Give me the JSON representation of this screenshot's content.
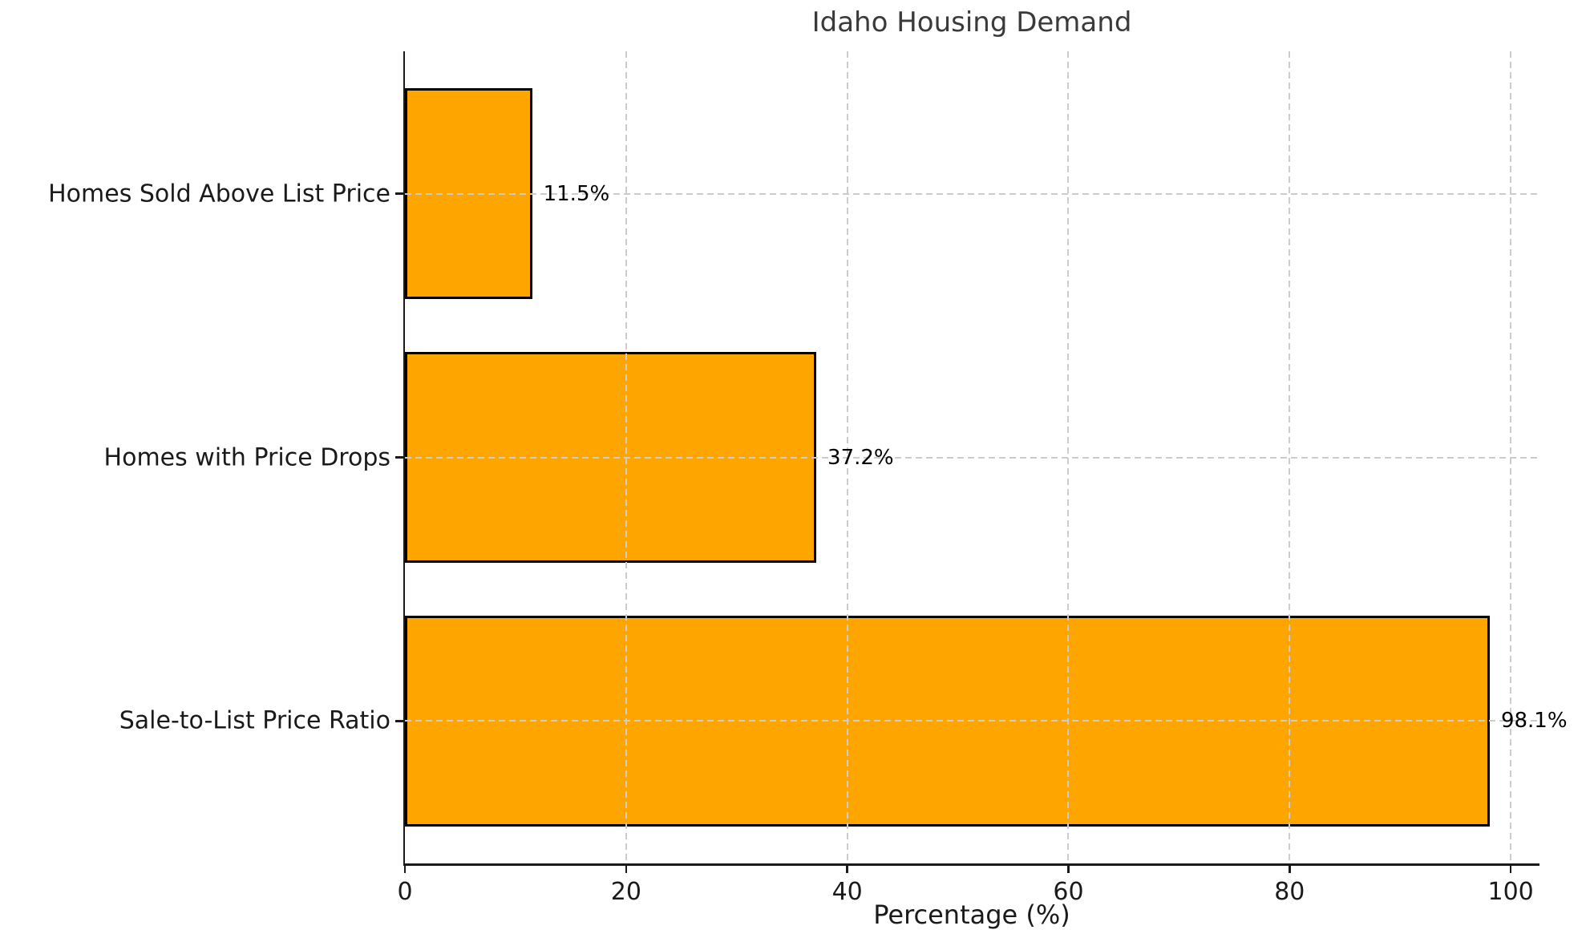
{
  "chart_data": {
    "type": "bar",
    "orientation": "horizontal",
    "title": "Idaho Housing Demand",
    "xlabel": "Percentage (%)",
    "ylabel": "",
    "categories": [
      "Homes Sold Above List Price",
      "Homes with Price Drops",
      "Sale-to-List Price Ratio"
    ],
    "values": [
      11.5,
      37.2,
      98.1
    ],
    "value_labels": [
      "11.5%",
      "37.2%",
      "98.1%"
    ],
    "xticks": [
      0,
      20,
      40,
      60,
      80,
      100
    ],
    "xlim": [
      0,
      102.6
    ],
    "grid": "dashed",
    "legend_position": "none",
    "colors": {
      "bar_fill": "#FFA500",
      "bar_edge": "#000000",
      "grid": "#cccccc",
      "spine": "#1a1a1a",
      "text": "#1a1a1a",
      "title": "#3a3a3a"
    }
  }
}
